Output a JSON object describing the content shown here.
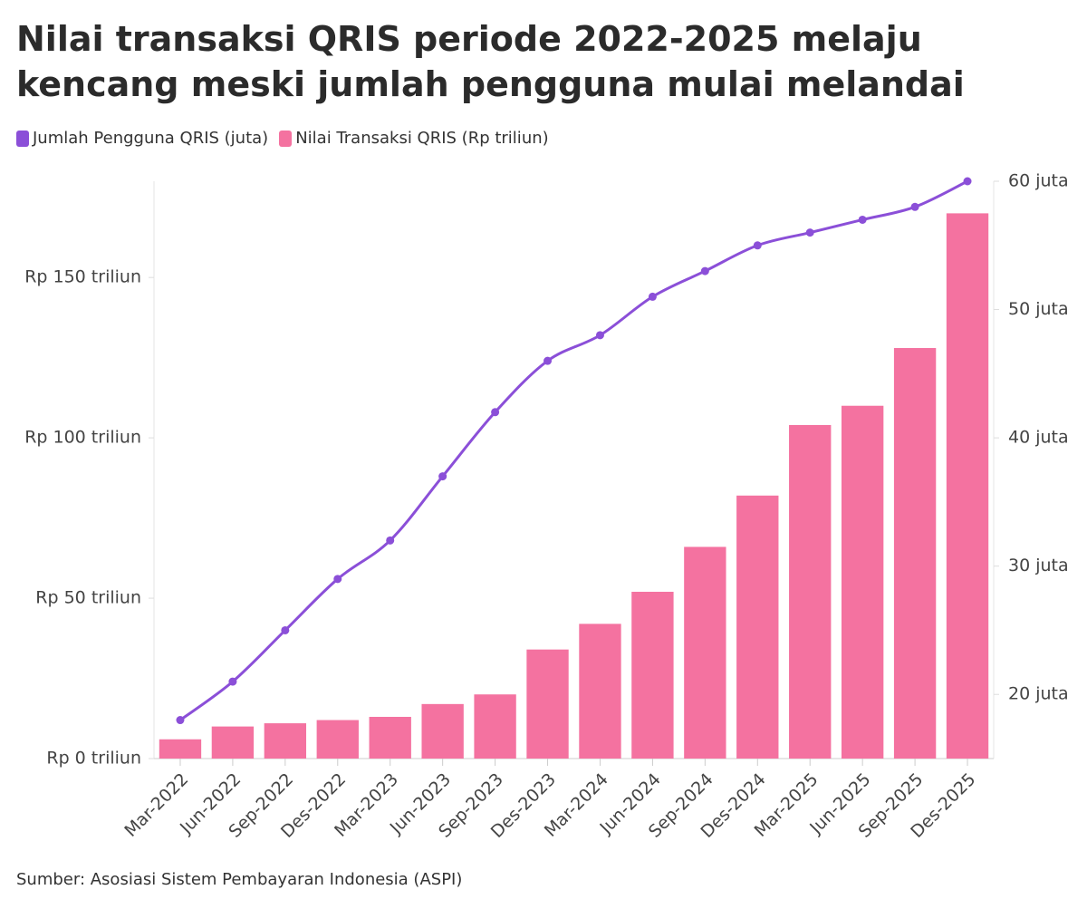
{
  "chart_data": {
    "type": "bar",
    "title": "Nilai transaksi QRIS periode 2022-2025 melaju kencang meski jumlah pengguna mulai melandai",
    "source": "Sumber: Asosiasi Sistem Pembayaran Indonesia (ASPI)",
    "categories": [
      "Mar-2022",
      "Jun-2022",
      "Sep-2022",
      "Des-2022",
      "Mar-2023",
      "Jun-2023",
      "Sep-2023",
      "Des-2023",
      "Mar-2024",
      "Jun-2024",
      "Sep-2024",
      "Des-2024",
      "Mar-2025",
      "Jun-2025",
      "Sep-2025",
      "Des-2025"
    ],
    "series": [
      {
        "name": "Jumlah Pengguna QRIS (juta)",
        "type": "line",
        "axis": "y2",
        "color": "#8b4fd8",
        "values": [
          18,
          21,
          25,
          29,
          32,
          37,
          42,
          46,
          48,
          51,
          53,
          55,
          56,
          57,
          58,
          60
        ]
      },
      {
        "name": "Nilai Transaksi QRIS (Rp triliun)",
        "type": "bar",
        "color": "#f472a0",
        "values": [
          6,
          10,
          11,
          12,
          13,
          17,
          20,
          34,
          42,
          52,
          66,
          82,
          104,
          110,
          128,
          170
        ]
      }
    ],
    "ylim": [
      0,
      180
    ],
    "yticks": [
      {
        "value": 0,
        "label": "Rp 0 triliun"
      },
      {
        "value": 50,
        "label": "Rp 50 triliun"
      },
      {
        "value": 100,
        "label": "Rp 100 triliun"
      },
      {
        "value": 150,
        "label": "Rp 150 triliun"
      }
    ],
    "y2lim": [
      15,
      60
    ],
    "y2ticks": [
      {
        "value": 20,
        "label": "20 juta"
      },
      {
        "value": 30,
        "label": "30 juta"
      },
      {
        "value": 40,
        "label": "40 juta"
      },
      {
        "value": 50,
        "label": "50 juta"
      },
      {
        "value": 60,
        "label": "60 juta"
      }
    ],
    "grid": false
  }
}
